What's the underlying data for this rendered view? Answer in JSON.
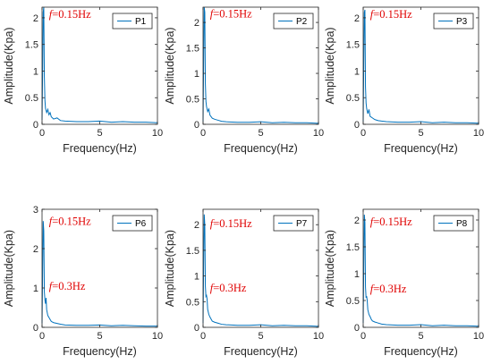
{
  "colors": {
    "series": "#0072BD",
    "annotation": "#E00000",
    "axis": "#262626"
  },
  "chart_data": [
    {
      "type": "line",
      "xlabel": "Frequency(Hz)",
      "ylabel": "Amplitude(Kpa)",
      "xlim": [
        0,
        10
      ],
      "ylim": [
        0,
        2.2
      ],
      "xticks": [
        "0",
        "5",
        "10"
      ],
      "yticks": [
        "0",
        "0.5",
        "1",
        "1.5",
        "2"
      ],
      "legend": "top-right",
      "grid": false,
      "annotations": [
        {
          "f": "f",
          "text": "=0.15Hz",
          "x": 0.6,
          "y": 2.0
        }
      ],
      "series": [
        {
          "name": "P1",
          "x": [
            0,
            0.05,
            0.1,
            0.15,
            0.2,
            0.25,
            0.3,
            0.4,
            0.5,
            0.6,
            0.7,
            0.8,
            1,
            1.3,
            1.6,
            2,
            3,
            4,
            5,
            6,
            7,
            8,
            9,
            10
          ],
          "y": [
            0.08,
            1.0,
            2.1,
            2.2,
            0.9,
            0.45,
            0.3,
            0.22,
            0.28,
            0.18,
            0.22,
            0.14,
            0.1,
            0.12,
            0.07,
            0.06,
            0.05,
            0.05,
            0.06,
            0.04,
            0.05,
            0.04,
            0.04,
            0.03
          ]
        }
      ]
    },
    {
      "type": "line",
      "xlabel": "Frequency(Hz)",
      "ylabel": "Amplitude(Kpa)",
      "xlim": [
        0,
        10
      ],
      "ylim": [
        0,
        2.3
      ],
      "xticks": [
        "0",
        "5",
        "10"
      ],
      "yticks": [
        "0",
        "0.5",
        "1",
        "1.5",
        "2"
      ],
      "legend": "top-right",
      "grid": false,
      "annotations": [
        {
          "f": "f",
          "text": "=0.15Hz",
          "x": 0.6,
          "y": 2.1
        }
      ],
      "series": [
        {
          "name": "P2",
          "x": [
            0,
            0.05,
            0.1,
            0.15,
            0.2,
            0.25,
            0.3,
            0.4,
            0.5,
            0.6,
            0.8,
            1,
            1.3,
            1.6,
            2,
            3,
            4,
            5,
            6,
            7,
            8,
            9,
            10
          ],
          "y": [
            0.05,
            1.2,
            2.3,
            2.2,
            0.8,
            0.45,
            0.35,
            0.25,
            0.3,
            0.18,
            0.12,
            0.1,
            0.08,
            0.06,
            0.05,
            0.04,
            0.04,
            0.05,
            0.03,
            0.04,
            0.03,
            0.03,
            0.02
          ]
        }
      ]
    },
    {
      "type": "line",
      "xlabel": "Frequency(Hz)",
      "ylabel": "Amplitude(Kpa)",
      "xlim": [
        0,
        10
      ],
      "ylim": [
        0,
        2.2
      ],
      "xticks": [
        "0",
        "5",
        "10"
      ],
      "yticks": [
        "0",
        "0.5",
        "1",
        "1.5",
        "2"
      ],
      "legend": "top-right",
      "grid": false,
      "annotations": [
        {
          "f": "f",
          "text": "=0.15Hz",
          "x": 0.6,
          "y": 2.0
        }
      ],
      "series": [
        {
          "name": "P3",
          "x": [
            0,
            0.05,
            0.1,
            0.15,
            0.2,
            0.25,
            0.3,
            0.4,
            0.5,
            0.6,
            0.8,
            1,
            1.3,
            1.6,
            2,
            3,
            4,
            5,
            6,
            7,
            8,
            9,
            10
          ],
          "y": [
            0.05,
            1.1,
            2.1,
            2.15,
            0.7,
            0.4,
            0.3,
            0.2,
            0.28,
            0.15,
            0.12,
            0.09,
            0.07,
            0.06,
            0.05,
            0.04,
            0.04,
            0.05,
            0.03,
            0.04,
            0.03,
            0.03,
            0.02
          ]
        }
      ]
    },
    {
      "type": "line",
      "xlabel": "Frequency(Hz)",
      "ylabel": "Amplitude(Kpa)",
      "xlim": [
        0,
        10
      ],
      "ylim": [
        0,
        3
      ],
      "xticks": [
        "0",
        "5",
        "10"
      ],
      "yticks": [
        "0",
        "1",
        "2",
        "3"
      ],
      "legend": "top-right",
      "grid": false,
      "annotations": [
        {
          "f": "f",
          "text": "=0.15Hz",
          "x": 0.6,
          "y": 2.6
        },
        {
          "f": "f",
          "text": "=0.3Hz",
          "x": 0.6,
          "y": 0.95
        }
      ],
      "series": [
        {
          "name": "P6",
          "x": [
            0,
            0.05,
            0.1,
            0.15,
            0.2,
            0.25,
            0.3,
            0.35,
            0.4,
            0.5,
            0.6,
            0.7,
            0.8,
            1,
            1.3,
            1.6,
            2,
            3,
            4,
            5,
            6,
            7,
            8,
            9,
            10
          ],
          "y": [
            0.1,
            1.4,
            2.7,
            2.45,
            0.9,
            0.7,
            0.6,
            0.75,
            0.45,
            0.3,
            0.25,
            0.2,
            0.15,
            0.12,
            0.1,
            0.08,
            0.06,
            0.05,
            0.05,
            0.06,
            0.04,
            0.05,
            0.04,
            0.03,
            0.03
          ]
        }
      ]
    },
    {
      "type": "line",
      "xlabel": "Frequency(Hz)",
      "ylabel": "Amplitude(Kpa)",
      "xlim": [
        0,
        10
      ],
      "ylim": [
        0,
        2.3
      ],
      "xticks": [
        "0",
        "5",
        "10"
      ],
      "yticks": [
        "0",
        "0.5",
        "1",
        "1.5",
        "2"
      ],
      "legend": "top-right",
      "grid": false,
      "annotations": [
        {
          "f": "f",
          "text": "=0.15Hz",
          "x": 0.6,
          "y": 1.95
        },
        {
          "f": "f",
          "text": "=0.3Hz",
          "x": 0.6,
          "y": 0.7
        }
      ],
      "series": [
        {
          "name": "P7",
          "x": [
            0,
            0.05,
            0.1,
            0.15,
            0.2,
            0.25,
            0.3,
            0.35,
            0.4,
            0.5,
            0.6,
            0.7,
            0.8,
            1,
            1.3,
            1.6,
            2,
            3,
            4,
            5,
            6,
            7,
            8,
            9,
            10
          ],
          "y": [
            0.08,
            1.2,
            2.2,
            2.0,
            0.8,
            0.6,
            0.62,
            0.55,
            0.35,
            0.25,
            0.2,
            0.16,
            0.12,
            0.1,
            0.08,
            0.06,
            0.05,
            0.04,
            0.04,
            0.05,
            0.03,
            0.04,
            0.03,
            0.03,
            0.02
          ]
        }
      ]
    },
    {
      "type": "line",
      "xlabel": "Frequency(Hz)",
      "ylabel": "Amplitude(Kpa)",
      "xlim": [
        0,
        10
      ],
      "ylim": [
        0,
        2.2
      ],
      "xticks": [
        "0",
        "5",
        "10"
      ],
      "yticks": [
        "0",
        "0.5",
        "1",
        "1.5",
        "2"
      ],
      "legend": "top-right",
      "grid": false,
      "annotations": [
        {
          "f": "f",
          "text": "=0.15Hz",
          "x": 0.6,
          "y": 1.9
        },
        {
          "f": "f",
          "text": "=0.3Hz",
          "x": 0.6,
          "y": 0.65
        }
      ],
      "series": [
        {
          "name": "P8",
          "x": [
            0,
            0.05,
            0.1,
            0.15,
            0.2,
            0.25,
            0.3,
            0.35,
            0.4,
            0.5,
            0.6,
            0.7,
            0.8,
            1,
            1.3,
            1.6,
            2,
            3,
            4,
            5,
            6,
            7,
            8,
            9,
            10
          ],
          "y": [
            0.08,
            1.1,
            2.1,
            1.95,
            0.75,
            0.55,
            0.58,
            0.5,
            0.33,
            0.24,
            0.2,
            0.15,
            0.12,
            0.1,
            0.08,
            0.06,
            0.05,
            0.04,
            0.04,
            0.05,
            0.03,
            0.04,
            0.03,
            0.03,
            0.02
          ]
        }
      ]
    }
  ]
}
